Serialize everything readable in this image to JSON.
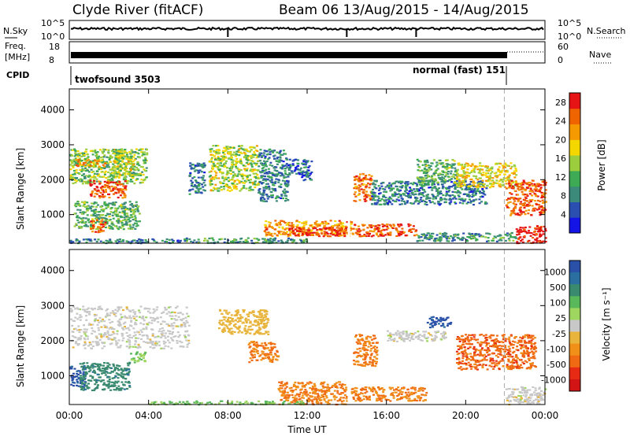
{
  "header": {
    "station": "Clyde River (fitACF)",
    "beam_dates": "Beam 06  13/Aug/2015 - 14/Aug/2015"
  },
  "noise_panel": {
    "left_label": "N.Sky",
    "left_ticks": [
      "10^5",
      "10^0"
    ],
    "right_label": "N.Search",
    "right_ticks": [
      "10^5",
      "10^0"
    ]
  },
  "freq_panel": {
    "left_label_1": "Freq.",
    "left_label_2": "[MHz]",
    "left_ticks": [
      "18",
      "8"
    ],
    "right_label": "Nave",
    "right_ticks": [
      "60",
      "0"
    ]
  },
  "cpid": {
    "label": "CPID",
    "programs": [
      {
        "name": "twofsound 3503",
        "start_hour": 0
      },
      {
        "name": "normal (fast) 151",
        "start_hour": 22
      }
    ]
  },
  "colors": {
    "power_scale": [
      "#1414e6",
      "#2a4fb0",
      "#3c8a7a",
      "#3faa55",
      "#9bcd3c",
      "#f5d700",
      "#f59a00",
      "#f06400",
      "#e61414"
    ],
    "velocity_scale": [
      "#2a50a8",
      "#2b6fa0",
      "#3a8a70",
      "#58b85a",
      "#9fd65f",
      "#c8c8c8",
      "#e8b43c",
      "#f09018",
      "#f06a14",
      "#e62a14",
      "#d21414"
    ]
  },
  "chart_data": [
    {
      "type": "heatmap",
      "name_hint": "power",
      "ylabel": "Slant Range [km]",
      "xlabel": "",
      "y_ticks": [
        1000,
        2000,
        3000,
        4000
      ],
      "ylim": [
        180,
        4600
      ],
      "xlim_hours": [
        0,
        24
      ],
      "colorbar": {
        "label": "Power [dB]",
        "ticks": [
          "4",
          "8",
          "12",
          "16",
          "20",
          "24",
          "28"
        ],
        "range": [
          0,
          30
        ]
      },
      "blobs": [
        {
          "t0": 0.0,
          "t1": 3.9,
          "r0": 1900,
          "r1": 2900,
          "value": 14
        },
        {
          "t0": 1.0,
          "t1": 2.8,
          "r0": 1500,
          "r1": 2000,
          "value": 26
        },
        {
          "t0": 0.2,
          "t1": 3.5,
          "r0": 600,
          "r1": 1400,
          "value": 12
        },
        {
          "t0": 0.3,
          "t1": 1.8,
          "r0": 2400,
          "r1": 2600,
          "value": 22
        },
        {
          "t0": 1.0,
          "t1": 1.8,
          "r0": 500,
          "r1": 900,
          "value": 24
        },
        {
          "t0": 2.0,
          "t1": 3.2,
          "r0": 2100,
          "r1": 2900,
          "value": 16
        },
        {
          "t0": 6.0,
          "t1": 6.8,
          "r0": 1600,
          "r1": 2500,
          "value": 8
        },
        {
          "t0": 7.0,
          "t1": 9.5,
          "r0": 1700,
          "r1": 3000,
          "value": 16
        },
        {
          "t0": 9.5,
          "t1": 11.0,
          "r0": 1400,
          "r1": 2900,
          "value": 8
        },
        {
          "t0": 11.0,
          "t1": 12.2,
          "r0": 2000,
          "r1": 2600,
          "value": 6
        },
        {
          "t0": 9.8,
          "t1": 14.2,
          "r0": 400,
          "r1": 850,
          "value": 22
        },
        {
          "t0": 11.0,
          "t1": 14.0,
          "r0": 400,
          "r1": 650,
          "value": 28
        },
        {
          "t0": 14.2,
          "t1": 17.5,
          "r0": 400,
          "r1": 750,
          "value": 26
        },
        {
          "t0": 14.3,
          "t1": 15.2,
          "r0": 1400,
          "r1": 2200,
          "value": 24
        },
        {
          "t0": 15.2,
          "t1": 21.0,
          "r0": 1300,
          "r1": 2000,
          "value": 8
        },
        {
          "t0": 17.5,
          "t1": 19.5,
          "r0": 1900,
          "r1": 2600,
          "value": 12
        },
        {
          "t0": 19.5,
          "t1": 22.5,
          "r0": 1800,
          "r1": 2500,
          "value": 18
        },
        {
          "t0": 22.0,
          "t1": 24.0,
          "r0": 1000,
          "r1": 2000,
          "value": 26
        },
        {
          "t0": 22.5,
          "t1": 24.0,
          "r0": 200,
          "r1": 700,
          "value": 29
        },
        {
          "t0": 5.5,
          "t1": 12.0,
          "r0": 200,
          "r1": 350,
          "value": 10
        },
        {
          "t0": 0.0,
          "t1": 5.5,
          "r0": 200,
          "r1": 320,
          "value": 8
        },
        {
          "t0": 17.5,
          "t1": 22.5,
          "r0": 250,
          "r1": 500,
          "value": 10
        }
      ]
    },
    {
      "type": "heatmap",
      "name_hint": "velocity",
      "ylabel": "Slant Range [km]",
      "xlabel": "Time UT",
      "y_ticks": [
        1000,
        2000,
        3000,
        4000
      ],
      "ylim": [
        180,
        4600
      ],
      "xlim_hours": [
        0,
        24
      ],
      "x_ticks": [
        "00:00",
        "04:00",
        "08:00",
        "12:00",
        "16:00",
        "20:00",
        "00:00"
      ],
      "colorbar": {
        "label": "Velocity [m s-1]",
        "ticks": [
          "1000",
          "500",
          "100",
          "25",
          "-25",
          "-100",
          "-500",
          "-1000"
        ]
      },
      "blobs": [
        {
          "t0": 0.0,
          "t1": 6.0,
          "r0": 1800,
          "r1": 3000,
          "value": 0
        },
        {
          "t0": 0.0,
          "t1": 0.8,
          "r0": 700,
          "r1": 1300,
          "value": 1000
        },
        {
          "t0": 0.5,
          "t1": 3.0,
          "r0": 600,
          "r1": 1400,
          "value": 300
        },
        {
          "t0": 3.0,
          "t1": 3.8,
          "r0": 1400,
          "r1": 1700,
          "value": 60
        },
        {
          "t0": 7.5,
          "t1": 10.0,
          "r0": 2200,
          "r1": 2900,
          "value": -60
        },
        {
          "t0": 9.0,
          "t1": 10.5,
          "r0": 1400,
          "r1": 2000,
          "value": -300
        },
        {
          "t0": 10.5,
          "t1": 14.0,
          "r0": 200,
          "r1": 850,
          "value": -300
        },
        {
          "t0": 14.3,
          "t1": 15.5,
          "r0": 1300,
          "r1": 2200,
          "value": -300
        },
        {
          "t0": 14.2,
          "t1": 18.0,
          "r0": 300,
          "r1": 700,
          "value": -300
        },
        {
          "t0": 16.0,
          "t1": 19.0,
          "r0": 2000,
          "r1": 2300,
          "value": 0
        },
        {
          "t0": 18.0,
          "t1": 19.2,
          "r0": 2400,
          "r1": 2700,
          "value": 1000
        },
        {
          "t0": 19.5,
          "t1": 23.5,
          "r0": 1200,
          "r1": 2200,
          "value": -400
        },
        {
          "t0": 22.0,
          "t1": 24.0,
          "r0": 200,
          "r1": 700,
          "value": 0
        },
        {
          "t0": 4.0,
          "t1": 12.0,
          "r0": 200,
          "r1": 300,
          "value": 60
        }
      ]
    }
  ]
}
